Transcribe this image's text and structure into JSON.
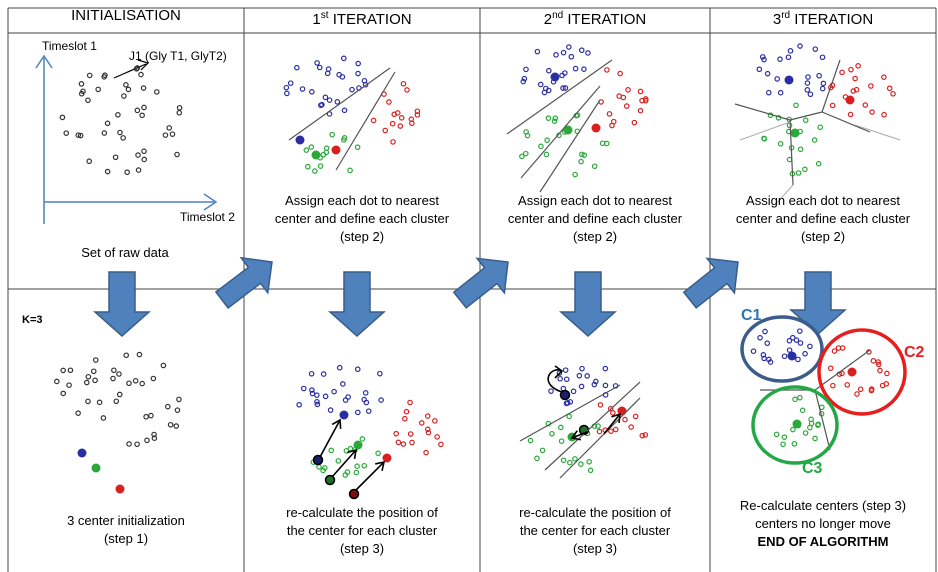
{
  "headers": {
    "init": "INITIALISATION",
    "it1_num": "1",
    "it1_sup": "st",
    "it1_rest": " ITERATION",
    "it2_num": "2",
    "it2_sup": "nd",
    "it2_rest": " ITERATION",
    "it3_num": "3",
    "it3_sup": "rd",
    "it3_rest": " ITERATION"
  },
  "init_panel": {
    "y_axis_label": "Timeslot 1",
    "x_axis_label": "Timeslot 2",
    "point_label": "J1 (Gly T1, GlyT2)",
    "caption": "Set of raw data"
  },
  "k_label": "K=3",
  "captions": {
    "assign_line1": "Assign each dot to nearest",
    "assign_line2": "center and  define each cluster",
    "assign_line3": "(step 2)",
    "init_line1": "3 center initialization",
    "init_line2": "(step 1)",
    "recalc_line1": "re-calculate the position of",
    "recalc_line2": "the center for each    cluster",
    "recalc_line3": "(step 3)",
    "final_line1": "Re-calculate centers (step 3)",
    "final_line2": "centers no longer move",
    "final_line3": "END OF ALGORITHM"
  },
  "cluster_labels": {
    "c1": "C1",
    "c2": "C2",
    "c3": "C3"
  },
  "colors": {
    "blue": "#2a2ea3",
    "red": "#d92020",
    "green": "#2aa83a",
    "arrow_fill": "#4f81bd",
    "arrow_stroke": "#385d8a",
    "c1_ring": "#3b5c8c",
    "c2_ring": "#e81d1d",
    "c3_ring": "#22a845",
    "grid": "#444444"
  }
}
